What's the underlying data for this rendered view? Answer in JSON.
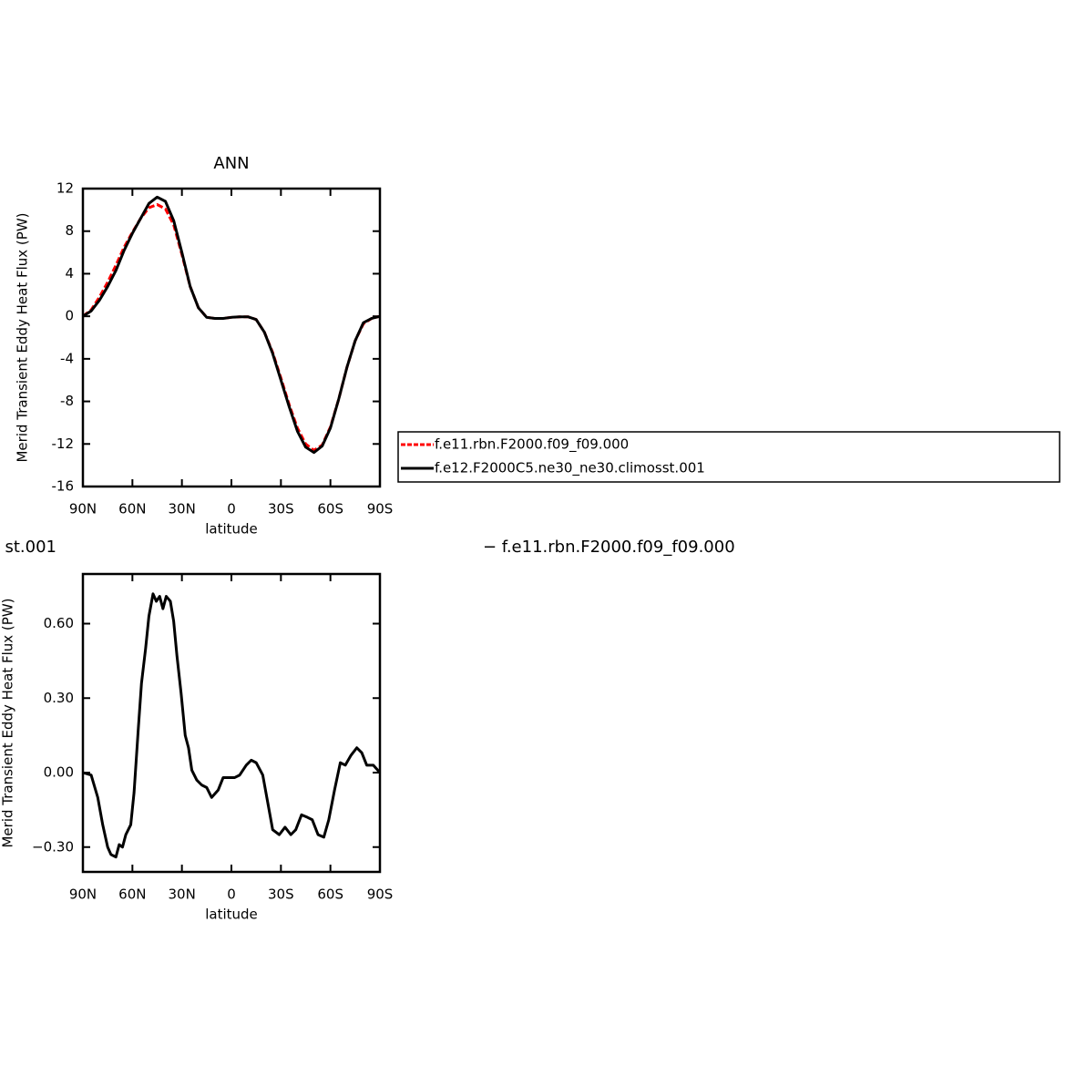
{
  "chart_data": [
    {
      "type": "line",
      "title": "ANN",
      "ylabel": "Merid Transient Eddy Heat Flux (PW)",
      "xlabel": "latitude",
      "xlim": [
        90,
        -90
      ],
      "xticks": [
        {
          "value": 90,
          "label": "90N"
        },
        {
          "value": 60,
          "label": "60N"
        },
        {
          "value": 30,
          "label": "30N"
        },
        0,
        {
          "value": -30,
          "label": "30S"
        },
        {
          "value": -60,
          "label": "60S"
        },
        {
          "value": -90,
          "label": "90S"
        }
      ],
      "ylim": [
        -16,
        12
      ],
      "yticks": [
        12,
        8,
        4,
        0,
        -4,
        -8,
        -12,
        -16
      ],
      "legend": "right",
      "x": [
        90,
        85,
        80,
        75,
        70,
        65,
        60,
        55,
        50,
        45,
        40,
        35,
        30,
        25,
        20,
        15,
        10,
        5,
        0,
        -5,
        -10,
        -15,
        -20,
        -25,
        -30,
        -35,
        -40,
        -45,
        -50,
        -55,
        -60,
        -65,
        -70,
        -75,
        -80,
        -85,
        -90
      ],
      "series": [
        {
          "name": "f.e11.rbn.F2000.f09_f09.000",
          "color": "#ff0000",
          "line_style": "dashed",
          "values": [
            0,
            0.6,
            1.8,
            3.2,
            4.8,
            6.5,
            7.9,
            9.2,
            10.2,
            10.5,
            10.1,
            8.6,
            5.8,
            2.8,
            0.8,
            -0.1,
            -0.2,
            -0.2,
            -0.1,
            -0.05,
            -0.05,
            -0.3,
            -1.5,
            -3.4,
            -5.8,
            -8.3,
            -10.5,
            -12.0,
            -12.6,
            -12.1,
            -10.4,
            -7.8,
            -4.8,
            -2.3,
            -0.7,
            -0.2,
            0
          ]
        },
        {
          "name": "f.e12.F2000C5.ne30_ne30.climosst.001",
          "color": "#000000",
          "line_style": "solid",
          "values": [
            0,
            0.5,
            1.5,
            2.8,
            4.3,
            6.2,
            7.8,
            9.2,
            10.6,
            11.2,
            10.8,
            9.0,
            6.0,
            2.8,
            0.8,
            -0.1,
            -0.2,
            -0.2,
            -0.1,
            -0.05,
            -0.05,
            -0.3,
            -1.5,
            -3.5,
            -6.0,
            -8.5,
            -10.8,
            -12.3,
            -12.8,
            -12.2,
            -10.5,
            -7.8,
            -4.8,
            -2.3,
            -0.6,
            -0.2,
            0
          ]
        }
      ]
    },
    {
      "type": "line",
      "title": "st.001",
      "subtitle": "− f.e11.rbn.F2000.f09_f09.000",
      "ylabel": "Merid Transient Eddy Heat Flux (PW)",
      "xlabel": "latitude",
      "xlim": [
        90,
        -90
      ],
      "xticks": [
        {
          "value": 90,
          "label": "90N"
        },
        {
          "value": 60,
          "label": "60N"
        },
        {
          "value": 30,
          "label": "30N"
        },
        0,
        {
          "value": -30,
          "label": "30S"
        },
        {
          "value": -60,
          "label": "60S"
        },
        {
          "value": -90,
          "label": "90S"
        }
      ],
      "ylim": [
        -0.4,
        0.8
      ],
      "yticks": [
        {
          "value": 0.6,
          "label": "0.60"
        },
        {
          "value": 0.3,
          "label": "0.30"
        },
        {
          "value": 0,
          "label": "0.00"
        },
        {
          "value": -0.3,
          "label": "−0.30"
        }
      ],
      "x": [
        90,
        85,
        81,
        78,
        75,
        73,
        70,
        68,
        66,
        64,
        61,
        59,
        56.5,
        54.5,
        52,
        50,
        47.5,
        45.5,
        43.5,
        41.5,
        39.5,
        37,
        35,
        33,
        30.5,
        28,
        26,
        24,
        21,
        18,
        15,
        12,
        8,
        5,
        1,
        -2,
        -5,
        -9,
        -12,
        -15,
        -19,
        -22,
        -25,
        -29,
        -32.5,
        -36,
        -39,
        -42.5,
        -46,
        -49,
        -52.5,
        -56,
        -59,
        -62.5,
        -66,
        -69,
        -72.5,
        -76,
        -79,
        -82,
        -86,
        -90
      ],
      "series": [
        {
          "color": "#000000",
          "line_style": "solid",
          "values": [
            0,
            -0.01,
            -0.1,
            -0.21,
            -0.3,
            -0.33,
            -0.34,
            -0.29,
            -0.3,
            -0.25,
            -0.21,
            -0.08,
            0.17,
            0.36,
            0.5,
            0.63,
            0.72,
            0.69,
            0.71,
            0.66,
            0.71,
            0.69,
            0.61,
            0.47,
            0.32,
            0.15,
            0.1,
            0.01,
            -0.03,
            -0.05,
            -0.06,
            -0.1,
            -0.07,
            -0.02,
            -0.02,
            -0.02,
            -0.01,
            0.03,
            0.05,
            0.04,
            -0.01,
            -0.12,
            -0.23,
            -0.25,
            -0.22,
            -0.25,
            -0.23,
            -0.17,
            -0.18,
            -0.19,
            -0.25,
            -0.26,
            -0.19,
            -0.07,
            0.04,
            0.03,
            0.07,
            0.1,
            0.08,
            0.03,
            0.03,
            0
          ]
        }
      ]
    }
  ]
}
